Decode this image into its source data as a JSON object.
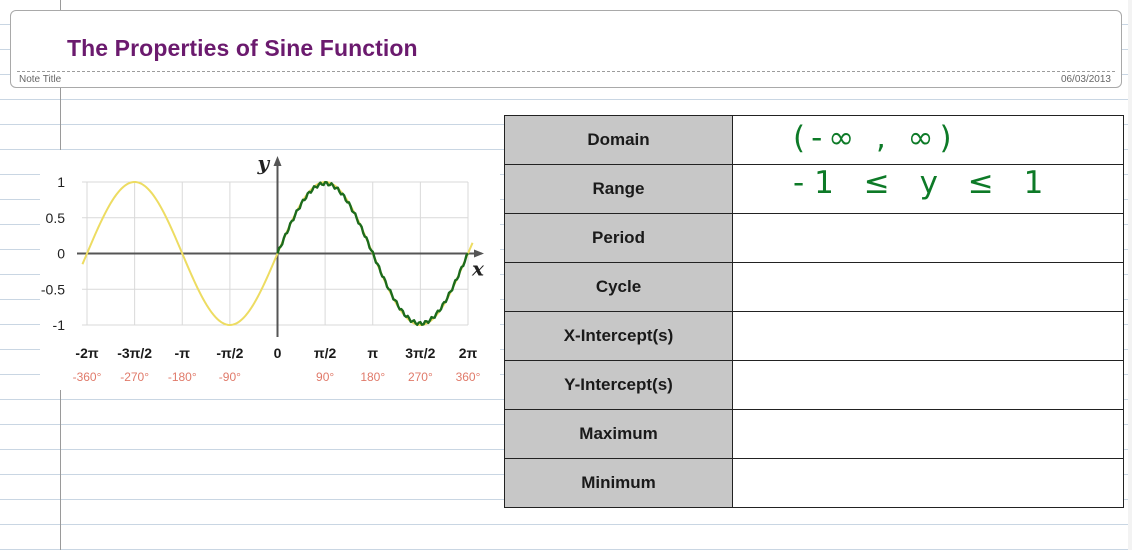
{
  "header": {
    "title": "The Properties of Sine Function",
    "note_title": "Note Title",
    "date": "06/03/2013"
  },
  "colors": {
    "title": "#6b1a6e",
    "sine_curve": "#eddc62",
    "traced_curve": "#1c6b1c",
    "handwriting": "#0d7a27",
    "radian_label": "#1a1a1a",
    "degree_label": "#e07a6a",
    "label_cell_bg": "#c7c7c7"
  },
  "chart_data": {
    "type": "line",
    "function": "y = sin(x)",
    "xlabel": "x",
    "ylabel": "y",
    "xlim": [
      -6.2832,
      6.2832
    ],
    "ylim": [
      -1,
      1
    ],
    "grid": true,
    "x_ticks_radians": [
      "-2π",
      "-3π/2",
      "-π",
      "-π/2",
      "0",
      "π/2",
      "π",
      "3π/2",
      "2π"
    ],
    "x_ticks_degrees": [
      "-360°",
      "-270°",
      "-180°",
      "-90°",
      "",
      "90°",
      "180°",
      "270°",
      "360°"
    ],
    "x_tick_values": [
      -6.2832,
      -4.7124,
      -3.1416,
      -1.5708,
      0,
      1.5708,
      3.1416,
      4.7124,
      6.2832
    ],
    "y_ticks": [
      "1",
      "0.5",
      "0",
      "-0.5",
      "-1"
    ],
    "y_tick_values": [
      1,
      0.5,
      0,
      -0.5,
      -1
    ],
    "series": [
      {
        "x": [
          -6.2832,
          -5.4978,
          -4.7124,
          -3.927,
          -3.1416,
          -2.3562,
          -1.5708,
          -0.7854,
          0,
          0.7854,
          1.5708,
          2.3562,
          3.1416,
          3.927,
          4.7124,
          5.4978,
          6.2832
        ],
        "y": [
          0,
          0.7071,
          1,
          0.7071,
          0,
          -0.7071,
          -1,
          -0.7071,
          0,
          0.7071,
          1,
          0.7071,
          0,
          -0.7071,
          -1,
          -0.7071,
          0
        ]
      },
      {
        "x": [
          0,
          0.3927,
          0.7854,
          1.1781,
          1.5708,
          1.9635,
          2.3562,
          2.7489,
          3.1416,
          3.5343,
          3.927,
          4.3197,
          4.7124,
          5.1051,
          5.4978,
          5.8905,
          6.2832
        ],
        "y": [
          0,
          0.3827,
          0.7071,
          0.9239,
          1,
          0.9239,
          0.7071,
          0.3827,
          0,
          -0.3827,
          -0.7071,
          -0.9239,
          -1,
          -0.9239,
          -0.7071,
          -0.3827,
          0
        ]
      }
    ]
  },
  "table": {
    "rows": [
      {
        "label": "Domain",
        "value": "(-∞ , ∞)"
      },
      {
        "label": "Range",
        "value": "-1 ≤ y ≤ 1"
      },
      {
        "label": "Period",
        "value": ""
      },
      {
        "label": "Cycle",
        "value": ""
      },
      {
        "label": "X-Intercept(s)",
        "value": ""
      },
      {
        "label": "Y-Intercept(s)",
        "value": ""
      },
      {
        "label": "Maximum",
        "value": ""
      },
      {
        "label": "Minimum",
        "value": ""
      }
    ]
  }
}
